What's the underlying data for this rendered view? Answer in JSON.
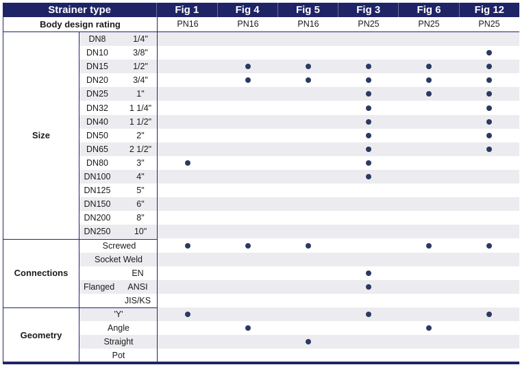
{
  "header": {
    "title": "Strainer type",
    "figs": [
      "Fig 1",
      "Fig 4",
      "Fig 5",
      "Fig 3",
      "Fig 6",
      "Fig 12"
    ]
  },
  "rating": {
    "label": "Body design rating",
    "values": [
      "PN16",
      "PN16",
      "PN16",
      "PN25",
      "PN25",
      "PN25"
    ]
  },
  "groups": {
    "size": "Size",
    "connections": "Connections",
    "geometry": "Geometry",
    "flanged": "Flanged"
  },
  "sizes": [
    {
      "dn": "DN8",
      "inch": "1/4\"",
      "marks": [
        0,
        0,
        0,
        0,
        0,
        0
      ]
    },
    {
      "dn": "DN10",
      "inch": "3/8\"",
      "marks": [
        0,
        0,
        0,
        0,
        0,
        1
      ]
    },
    {
      "dn": "DN15",
      "inch": "1/2\"",
      "marks": [
        0,
        1,
        1,
        1,
        1,
        1
      ]
    },
    {
      "dn": "DN20",
      "inch": "3/4\"",
      "marks": [
        0,
        1,
        1,
        1,
        1,
        1
      ]
    },
    {
      "dn": "DN25",
      "inch": "1\"",
      "marks": [
        0,
        0,
        0,
        1,
        1,
        1
      ]
    },
    {
      "dn": "DN32",
      "inch": "1 1/4\"",
      "marks": [
        0,
        0,
        0,
        1,
        0,
        1
      ]
    },
    {
      "dn": "DN40",
      "inch": "1 1/2\"",
      "marks": [
        0,
        0,
        0,
        1,
        0,
        1
      ]
    },
    {
      "dn": "DN50",
      "inch": "2\"",
      "marks": [
        0,
        0,
        0,
        1,
        0,
        1
      ]
    },
    {
      "dn": "DN65",
      "inch": "2 1/2\"",
      "marks": [
        0,
        0,
        0,
        1,
        0,
        1
      ]
    },
    {
      "dn": "DN80",
      "inch": "3\"",
      "marks": [
        1,
        0,
        0,
        1,
        0,
        0
      ]
    },
    {
      "dn": "DN100",
      "inch": "4\"",
      "marks": [
        0,
        0,
        0,
        1,
        0,
        0
      ]
    },
    {
      "dn": "DN125",
      "inch": "5\"",
      "marks": [
        0,
        0,
        0,
        0,
        0,
        0
      ]
    },
    {
      "dn": "DN150",
      "inch": "6\"",
      "marks": [
        0,
        0,
        0,
        0,
        0,
        0
      ]
    },
    {
      "dn": "DN200",
      "inch": "8\"",
      "marks": [
        0,
        0,
        0,
        0,
        0,
        0
      ]
    },
    {
      "dn": "DN250",
      "inch": "10\"",
      "marks": [
        0,
        0,
        0,
        0,
        0,
        0
      ]
    }
  ],
  "connections": [
    {
      "label": "Screwed",
      "marks": [
        1,
        1,
        1,
        0,
        1,
        1
      ]
    },
    {
      "label": "Socket Weld",
      "marks": [
        0,
        0,
        0,
        0,
        0,
        0
      ]
    },
    {
      "label": "EN",
      "marks": [
        0,
        0,
        0,
        1,
        0,
        0
      ]
    },
    {
      "label": "ANSI",
      "marks": [
        0,
        0,
        0,
        1,
        0,
        0
      ]
    },
    {
      "label": "JIS/KS",
      "marks": [
        0,
        0,
        0,
        0,
        0,
        0
      ]
    }
  ],
  "geometry": [
    {
      "label": "'Y'",
      "marks": [
        1,
        0,
        0,
        1,
        0,
        1
      ]
    },
    {
      "label": "Angle",
      "marks": [
        0,
        1,
        0,
        0,
        1,
        0
      ]
    },
    {
      "label": "Straight",
      "marks": [
        0,
        0,
        1,
        0,
        0,
        0
      ]
    },
    {
      "label": "Pot",
      "marks": [
        0,
        0,
        0,
        0,
        0,
        0
      ]
    }
  ],
  "colors": {
    "header_bg": "#1f2466",
    "dot": "#2b3a62",
    "shade": "#ececf0"
  }
}
